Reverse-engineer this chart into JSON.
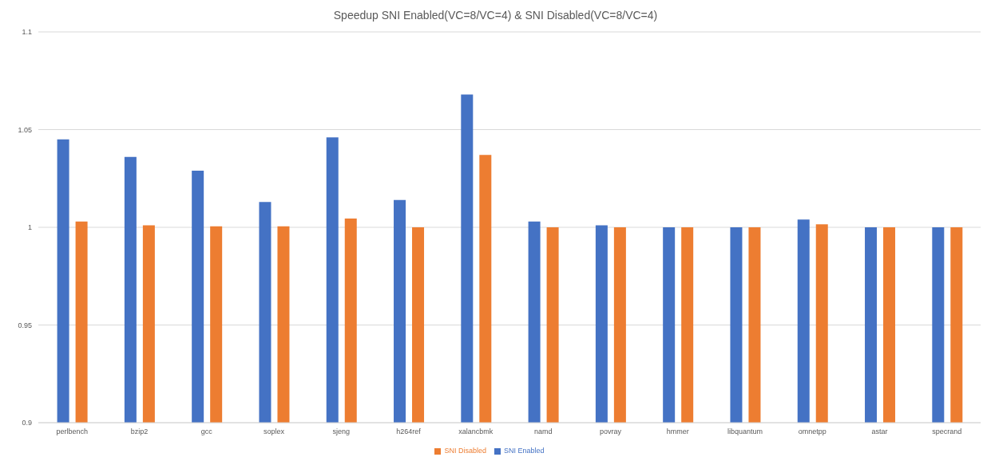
{
  "chart_data": {
    "type": "bar",
    "title": "Speedup SNI Enabled(VC=8/VC=4) & SNI Disabled(VC=8/VC=4)",
    "categories": [
      "perlbench",
      "bzip2",
      "gcc",
      "soplex",
      "sjeng",
      "h264ref",
      "xalancbmk",
      "namd",
      "povray",
      "hmmer",
      "libquantum",
      "omnetpp",
      "astar",
      "specrand"
    ],
    "series": [
      {
        "name": "SNI Enabled",
        "color": "#4472c4",
        "values": [
          1.045,
          1.036,
          1.029,
          1.013,
          1.046,
          1.014,
          1.068,
          1.003,
          1.001,
          1.0,
          1.0,
          1.004,
          1.0,
          1.0
        ]
      },
      {
        "name": "SNI Disabled",
        "color": "#ed7d31",
        "values": [
          1.003,
          1.001,
          1.0005,
          1.0005,
          1.0045,
          1.0,
          1.037,
          1.0,
          1.0,
          1.0,
          1.0,
          1.0015,
          1.0,
          1.0
        ]
      }
    ],
    "ylim": [
      0.9,
      1.1
    ],
    "yticks": [
      0.9,
      0.95,
      1,
      1.05,
      1.1
    ],
    "grid": "y",
    "legend": "bottom"
  }
}
